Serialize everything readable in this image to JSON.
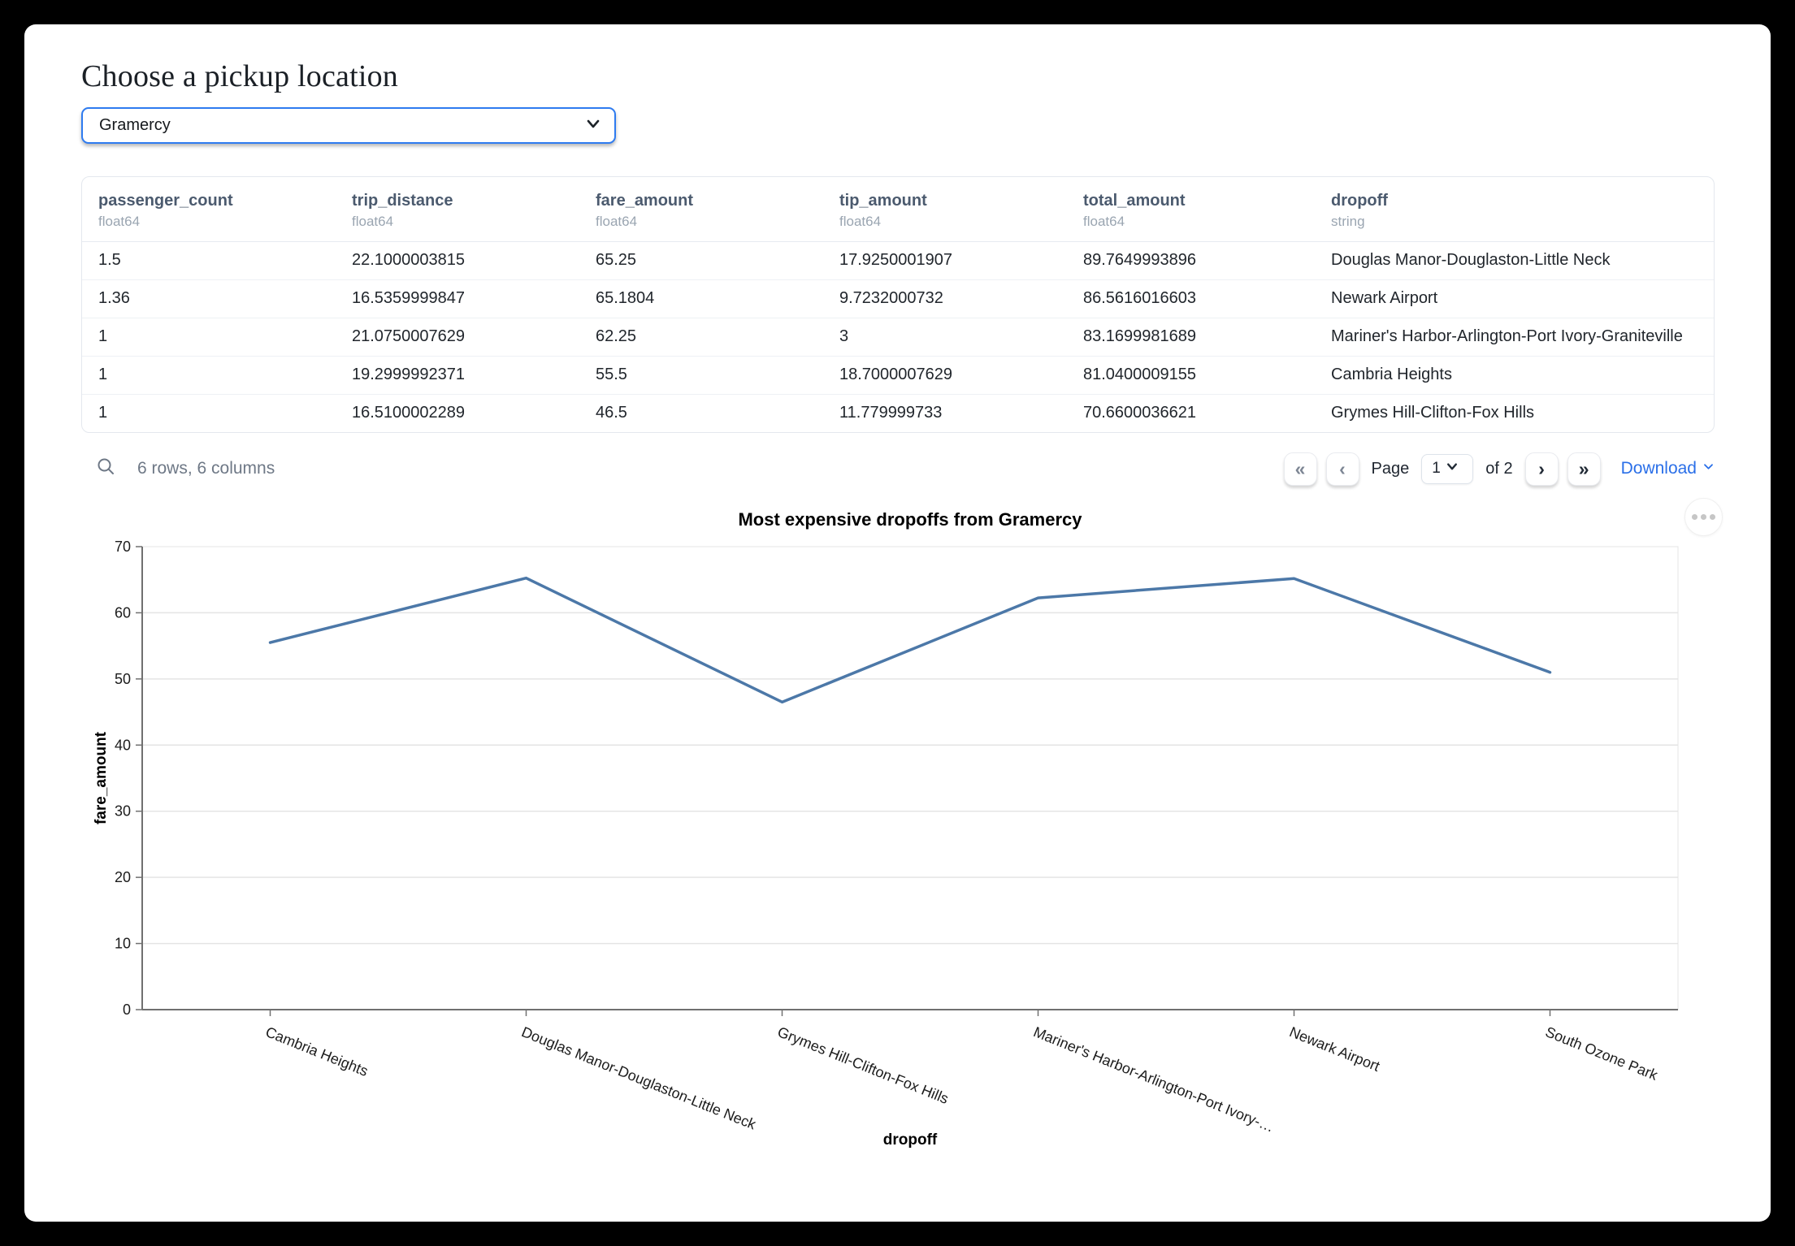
{
  "header": {
    "title": "Choose a pickup location"
  },
  "pickup_select": {
    "value": "Gramercy"
  },
  "table": {
    "columns": [
      {
        "name": "passenger_count",
        "type": "float64"
      },
      {
        "name": "trip_distance",
        "type": "float64"
      },
      {
        "name": "fare_amount",
        "type": "float64"
      },
      {
        "name": "tip_amount",
        "type": "float64"
      },
      {
        "name": "total_amount",
        "type": "float64"
      },
      {
        "name": "dropoff",
        "type": "string"
      }
    ],
    "rows": [
      [
        "1.5",
        "22.1000003815",
        "65.25",
        "17.9250001907",
        "89.7649993896",
        "Douglas Manor-Douglaston-Little Neck"
      ],
      [
        "1.36",
        "16.5359999847",
        "65.1804",
        "9.7232000732",
        "86.5616016603",
        "Newark Airport"
      ],
      [
        "1",
        "21.0750007629",
        "62.25",
        "3",
        "83.1699981689",
        "Mariner's Harbor-Arlington-Port Ivory-Graniteville"
      ],
      [
        "1",
        "19.2999992371",
        "55.5",
        "18.7000007629",
        "81.0400009155",
        "Cambria Heights"
      ],
      [
        "1",
        "16.5100002289",
        "46.5",
        "11.779999733",
        "70.6600036621",
        "Grymes Hill-Clifton-Fox Hills"
      ]
    ],
    "footer": {
      "summary": "6 rows, 6 columns"
    },
    "pagination": {
      "page_label": "Page",
      "current_page": "1",
      "of_label": "of 2",
      "first_icon": "«",
      "prev_icon": "‹",
      "next_icon": "›",
      "last_icon": "»",
      "download_label": "Download"
    }
  },
  "chart_data": {
    "type": "line",
    "title": "Most expensive dropoffs from Gramercy",
    "xlabel": "dropoff",
    "ylabel": "fare_amount",
    "categories": [
      "Cambria Heights",
      "Douglas Manor-Douglaston-Little Neck",
      "Grymes Hill-Clifton-Fox Hills",
      "Mariner's Harbor-Arlington-Port Ivory-…",
      "Newark Airport",
      "South Ozone Park"
    ],
    "values": [
      55.5,
      65.25,
      46.5,
      62.25,
      65.1804,
      51
    ],
    "ylim": [
      0,
      70
    ],
    "yticks": [
      0,
      10,
      20,
      30,
      40,
      50,
      60,
      70
    ],
    "line_color": "#4c78a8",
    "grid": true,
    "legend": "none"
  }
}
